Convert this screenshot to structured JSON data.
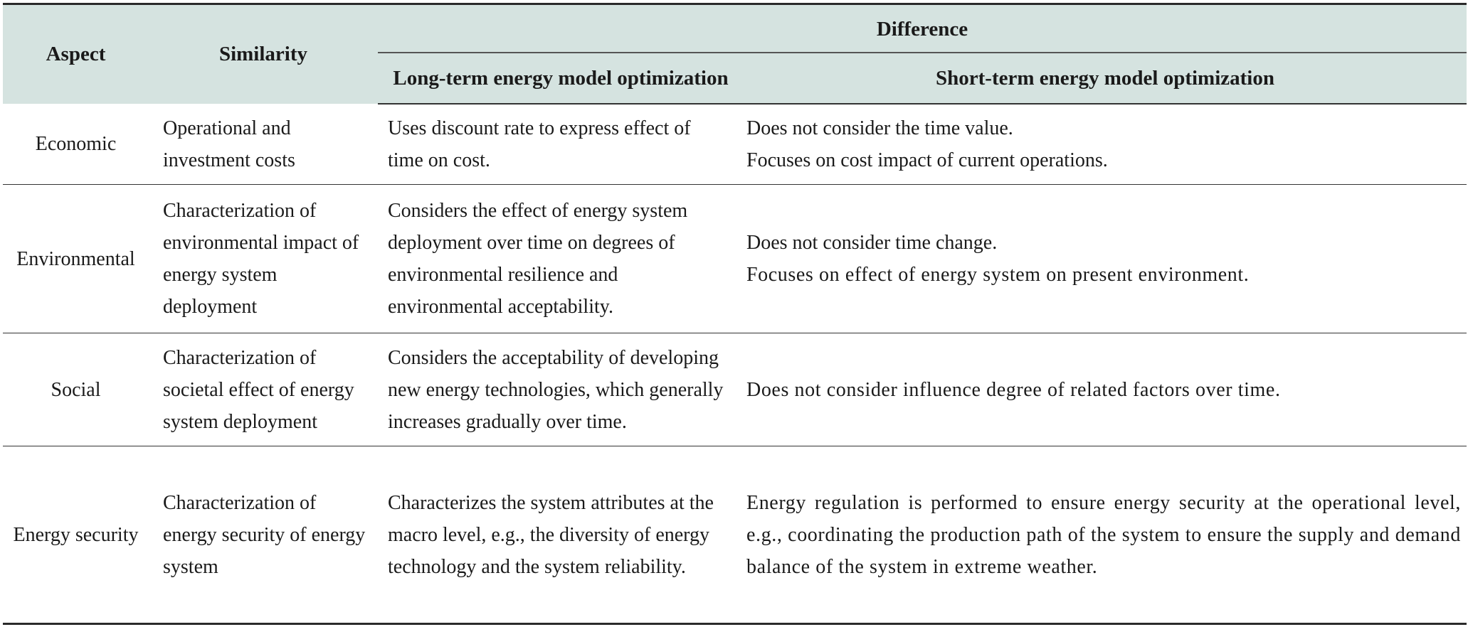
{
  "headers": {
    "aspect": "Aspect",
    "similarity": "Similarity",
    "difference": "Difference",
    "long_term": "Long-term energy model optimization",
    "short_term": "Short-term energy model optimization"
  },
  "rows": [
    {
      "aspect": "Economic",
      "similarity": "Operational and investment costs",
      "long_term": "Uses discount rate to express effect of time on cost.",
      "short_term": [
        "Does not consider the time value.",
        "Focuses on cost impact of current operations."
      ]
    },
    {
      "aspect": "Environmental",
      "similarity": "Characterization of environmental impact of energy system deployment",
      "long_term": "Considers the effect of energy system deployment over time on degrees of environmental resilience and environmental acceptability.",
      "short_term": [
        "Does not consider time change.",
        "Focuses on effect of energy system on present environment."
      ]
    },
    {
      "aspect": "Social",
      "similarity": "Characterization of societal effect of energy system deployment",
      "long_term": "Considers the acceptability of developing new energy technologies, which generally increases gradually over time.",
      "short_term": [
        "Does not consider influence degree of related factors over time."
      ]
    },
    {
      "aspect": "Energy security",
      "similarity": "Characterization of energy security of energy system",
      "long_term": "Characterizes the system attributes at the macro level, e.g., the diversity of energy technology and the system reliability.",
      "short_term": [
        "Energy regulation is performed to ensure energy security at the operational level, e.g., coordinating the production path of the system to ensure the supply and demand balance of the system in extreme weather."
      ]
    }
  ]
}
